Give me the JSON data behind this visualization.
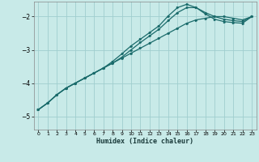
{
  "xlabel": "Humidex (Indice chaleur)",
  "background_color": "#c8eae8",
  "grid_color": "#a0cece",
  "line_color": "#1a6b6b",
  "xlim": [
    -0.5,
    23.5
  ],
  "ylim": [
    -5.4,
    -1.55
  ],
  "yticks": [
    -5,
    -4,
    -3,
    -2
  ],
  "xticks": [
    0,
    1,
    2,
    3,
    4,
    5,
    6,
    7,
    8,
    9,
    10,
    11,
    12,
    13,
    14,
    15,
    16,
    17,
    18,
    19,
    20,
    21,
    22,
    23
  ],
  "line1_x": [
    0,
    1,
    2,
    3,
    4,
    5,
    6,
    7,
    8,
    9,
    10,
    11,
    12,
    13,
    14,
    15,
    16,
    17,
    18,
    19,
    20,
    21,
    22,
    23
  ],
  "line1_y": [
    -4.8,
    -4.6,
    -4.35,
    -4.15,
    -4.0,
    -3.85,
    -3.7,
    -3.55,
    -3.4,
    -3.25,
    -3.1,
    -2.95,
    -2.8,
    -2.65,
    -2.5,
    -2.35,
    -2.2,
    -2.1,
    -2.05,
    -2.0,
    -2.0,
    -2.05,
    -2.1,
    -2.0
  ],
  "line2_x": [
    0,
    1,
    2,
    3,
    4,
    5,
    6,
    7,
    8,
    9,
    10,
    11,
    12,
    13,
    14,
    15,
    16,
    17,
    18,
    19,
    20,
    21,
    22,
    23
  ],
  "line2_y": [
    -4.8,
    -4.6,
    -4.35,
    -4.15,
    -4.0,
    -3.85,
    -3.7,
    -3.55,
    -3.4,
    -3.22,
    -3.0,
    -2.78,
    -2.58,
    -2.38,
    -2.12,
    -1.88,
    -1.73,
    -1.73,
    -1.88,
    -2.0,
    -2.08,
    -2.12,
    -2.15,
    -2.0
  ],
  "line3_x": [
    0,
    1,
    2,
    3,
    4,
    5,
    6,
    7,
    8,
    9,
    10,
    11,
    12,
    13,
    14,
    15,
    16,
    17,
    18,
    19,
    20,
    21,
    22,
    23
  ],
  "line3_y": [
    -4.8,
    -4.6,
    -4.35,
    -4.15,
    -4.0,
    -3.85,
    -3.7,
    -3.55,
    -3.35,
    -3.12,
    -2.88,
    -2.68,
    -2.48,
    -2.28,
    -1.98,
    -1.73,
    -1.63,
    -1.73,
    -1.92,
    -2.08,
    -2.15,
    -2.18,
    -2.2,
    -2.0
  ]
}
